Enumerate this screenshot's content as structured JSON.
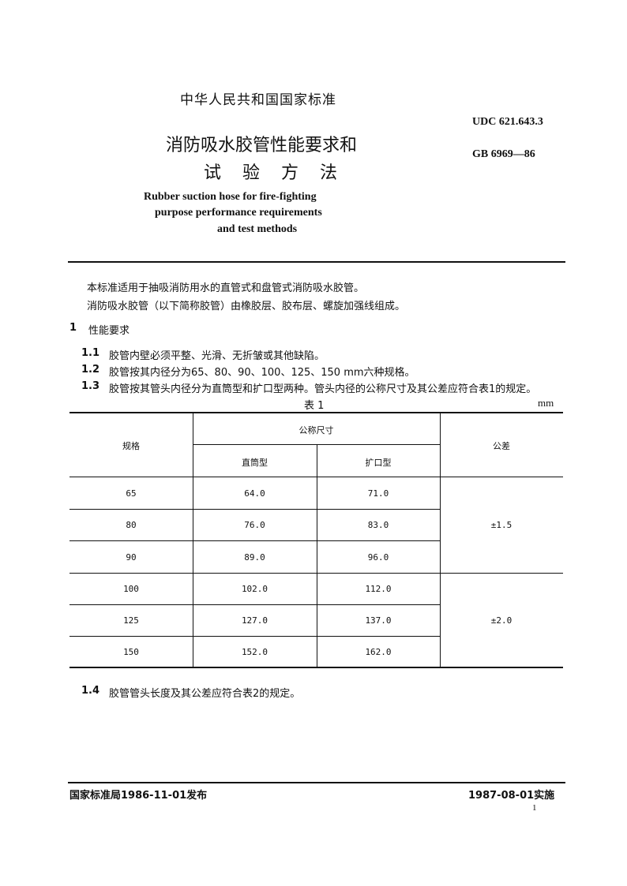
{
  "header": {
    "national_standard": "中华人民共和国国家标准",
    "udc": "UDC 621.643.3",
    "gb": "GB 6969—86",
    "title_line1": "消防吸水胶管性能要求和",
    "title_line2": "试 验 方 法",
    "en_title_line1": "Rubber suction hose for fire-fighting",
    "en_title_line2": "purpose performance requirements",
    "en_title_line3": "and test methods"
  },
  "body": {
    "intro1": "本标准适用于抽吸消防用水的直管式和盘管式消防吸水胶管。",
    "intro2": "消防吸水胶管（以下简称胶管）由橡胶层、胶布层、螺旋加强线组成。",
    "section1_num": "1",
    "section1_title": "性能要求",
    "clauses": [
      {
        "num": "1.1",
        "text": "胶管内壁必须平整、光滑、无折皱或其他缺陷。"
      },
      {
        "num": "1.2",
        "text": "胶管按其内径分为65、80、90、100、125、150 mm六种规格。"
      },
      {
        "num": "1.3",
        "text": "胶管按其管头内径分为直筒型和扩口型两种。管头内径的公称尺寸及其公差应符合表1的规定。"
      },
      {
        "num": "1.4",
        "text": "胶管管头长度及其公差应符合表2的规定。"
      }
    ]
  },
  "table1": {
    "caption": "表 1",
    "unit": "mm",
    "headers": {
      "spec": "规格",
      "nominal": "公称尺寸",
      "straight": "直筒型",
      "flared": "扩口型",
      "tolerance": "公差"
    },
    "rows": [
      [
        "65",
        "64.0",
        "71.0"
      ],
      [
        "80",
        "76.0",
        "83.0"
      ],
      [
        "90",
        "89.0",
        "96.0"
      ],
      [
        "100",
        "102.0",
        "112.0"
      ],
      [
        "125",
        "127.0",
        "137.0"
      ],
      [
        "150",
        "152.0",
        "162.0"
      ]
    ],
    "tolerances": [
      "±1.5",
      "±2.0"
    ]
  },
  "footer": {
    "issued": "国家标准局1986-11-01发布",
    "effective": "1987-08-01实施",
    "page_number": "1"
  }
}
